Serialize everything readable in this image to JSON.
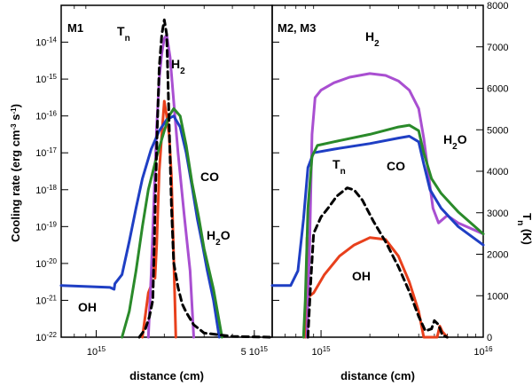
{
  "chart_data": {
    "type": "line",
    "y_axis_left": {
      "label_main": "Cooling rate (erg cm",
      "label_exp1": "-3",
      "label_mid": " s",
      "label_exp2": "-1",
      "label_end": ")",
      "scale": "log",
      "range": [
        1e-22,
        1e-13
      ],
      "ticks": [
        {
          "base": "10",
          "exp": "-14",
          "value": -14
        },
        {
          "base": "10",
          "exp": "-15",
          "value": -15
        },
        {
          "base": "10",
          "exp": "-16",
          "value": -16
        },
        {
          "base": "10",
          "exp": "-17",
          "value": -17
        },
        {
          "base": "10",
          "exp": "-18",
          "value": -18
        },
        {
          "base": "10",
          "exp": "-19",
          "value": -19
        },
        {
          "base": "10",
          "exp": "-20",
          "value": -20
        },
        {
          "base": "10",
          "exp": "-21",
          "value": -21
        },
        {
          "base": "10",
          "exp": "-22",
          "value": -22
        }
      ]
    },
    "y_axis_right": {
      "label": "T",
      "label_sub": "n",
      "label_end": " (K)",
      "range": [
        0,
        8000
      ],
      "ticks": [
        "8000",
        "7000",
        "6000",
        "5000",
        "4000",
        "3000",
        "2000",
        "1000",
        "0"
      ]
    },
    "x_label": "distance (cm)",
    "panels": [
      {
        "name": "M1",
        "x_ticks": [
          {
            "base": "10",
            "exp": "15",
            "value": 1000000000000000.0
          },
          {
            "base": "5 10",
            "exp": "15",
            "value": 5000000000000000.0
          }
        ],
        "x_range": [
          700000000000000.0,
          6000000000000000.0
        ],
        "labels": {
          "T": "T",
          "T_sub": "n",
          "H2": "H",
          "H2_sub": "2",
          "CO": "CO",
          "H2O": "H",
          "H2O_sub": "2",
          "H2O_end": "O",
          "OH": "OH"
        },
        "series": [
          {
            "name": "OH",
            "color": "#e8401c",
            "points": [
              [
                1600000000000000.0,
                -22
              ],
              [
                1700000000000000.0,
                -20.8
              ],
              [
                1750000000000000.0,
                -20.6
              ],
              [
                1780000000000000.0,
                -19.3
              ],
              [
                1820000000000000.0,
                -20.4
              ],
              [
                1850000000000000.0,
                -19.5
              ],
              [
                1900000000000000.0,
                -17.5
              ],
              [
                1950000000000000.0,
                -16.5
              ],
              [
                2000000000000000.0,
                -15.6
              ],
              [
                2050000000000000.0,
                -16.0
              ],
              [
                2100000000000000.0,
                -16.5
              ],
              [
                2150000000000000.0,
                -17.6
              ],
              [
                2200000000000000.0,
                -19.8
              ],
              [
                2250000000000000.0,
                -22
              ]
            ]
          },
          {
            "name": "H2",
            "color": "#a94fd1",
            "points": [
              [
                1700000000000000.0,
                -22
              ],
              [
                1750000000000000.0,
                -20.3
              ],
              [
                1800000000000000.0,
                -18.3
              ],
              [
                1850000000000000.0,
                -16.3
              ],
              [
                1900000000000000.0,
                -15.0
              ],
              [
                1950000000000000.0,
                -14.3
              ],
              [
                2000000000000000.0,
                -13.9
              ],
              [
                2050000000000000.0,
                -13.8
              ],
              [
                2120000000000000.0,
                -14.4
              ],
              [
                2200000000000000.0,
                -15.6
              ],
              [
                2300000000000000.0,
                -17.0
              ],
              [
                2450000000000000.0,
                -18.7
              ],
              [
                2600000000000000.0,
                -20.2
              ],
              [
                2700000000000000.0,
                -22
              ]
            ]
          },
          {
            "name": "CO",
            "color": "#1f3fc4",
            "points": [
              [
                700000000000000.0,
                -20.6
              ],
              [
                1150000000000000.0,
                -20.65
              ],
              [
                1200000000000000.0,
                -20.7
              ],
              [
                1210000000000000.0,
                -20.55
              ],
              [
                1300000000000000.0,
                -20.3
              ],
              [
                1400000000000000.0,
                -19.4
              ],
              [
                1500000000000000.0,
                -18.5
              ],
              [
                1600000000000000.0,
                -17.7
              ],
              [
                1750000000000000.0,
                -16.9
              ],
              [
                1900000000000000.0,
                -16.4
              ],
              [
                2050000000000000.0,
                -16.1
              ],
              [
                2200000000000000.0,
                -16.0
              ],
              [
                2350000000000000.0,
                -16.3
              ],
              [
                2500000000000000.0,
                -17.0
              ],
              [
                2650000000000000.0,
                -17.9
              ],
              [
                2800000000000000.0,
                -18.8
              ],
              [
                2950000000000000.0,
                -19.5
              ],
              [
                3100000000000000.0,
                -20.2
              ],
              [
                3300000000000000.0,
                -21.0
              ],
              [
                3500000000000000.0,
                -22
              ]
            ]
          },
          {
            "name": "H2O",
            "color": "#2a8a2a",
            "points": [
              [
                1300000000000000.0,
                -22
              ],
              [
                1400000000000000.0,
                -21.3
              ],
              [
                1500000000000000.0,
                -20.2
              ],
              [
                1600000000000000.0,
                -19.0
              ],
              [
                1700000000000000.0,
                -18.0
              ],
              [
                1850000000000000.0,
                -17.1
              ],
              [
                2000000000000000.0,
                -16.4
              ],
              [
                2100000000000000.0,
                -16.0
              ],
              [
                2200000000000000.0,
                -15.8
              ],
              [
                2350000000000000.0,
                -16.0
              ],
              [
                2500000000000000.0,
                -16.8
              ],
              [
                2650000000000000.0,
                -17.8
              ],
              [
                2850000000000000.0,
                -18.8
              ],
              [
                3000000000000000.0,
                -19.6
              ],
              [
                3300000000000000.0,
                -20.7
              ],
              [
                3600000000000000.0,
                -22
              ]
            ]
          },
          {
            "name": "Tn",
            "color": "#000000",
            "dashed": true,
            "axis": "right",
            "points": [
              [
                1550000000000000.0,
                0
              ],
              [
                1650000000000000.0,
                200
              ],
              [
                1720000000000000.0,
                500
              ],
              [
                1780000000000000.0,
                900
              ],
              [
                1820000000000000.0,
                3000
              ],
              [
                1860000000000000.0,
                5000
              ],
              [
                1900000000000000.0,
                6500
              ],
              [
                1950000000000000.0,
                7300
              ],
              [
                2000000000000000.0,
                7650
              ],
              [
                2050000000000000.0,
                7300
              ],
              [
                2100000000000000.0,
                5200
              ],
              [
                2150000000000000.0,
                3200
              ],
              [
                2200000000000000.0,
                1800
              ],
              [
                2300000000000000.0,
                1200
              ],
              [
                2400000000000000.0,
                800
              ],
              [
                2500000000000000.0,
                600
              ],
              [
                2700000000000000.0,
                300
              ],
              [
                3000000000000000.0,
                100
              ],
              [
                4000000000000000.0,
                20
              ],
              [
                6000000000000000.0,
                0
              ]
            ]
          }
        ]
      },
      {
        "name": "M2, M3",
        "x_ticks": [
          {
            "base": "10",
            "exp": "15",
            "value": 1000000000000000.0
          },
          {
            "base": "10",
            "exp": "16",
            "value": 1e+16
          }
        ],
        "x_range": [
          500000000000000.0,
          1e+16
        ],
        "labels": {
          "T": "T",
          "T_sub": "n",
          "H2": "H",
          "H2_sub": "2",
          "CO": "CO",
          "H2O": "H",
          "H2O_sub": "2",
          "H2O_end": "O",
          "OH": "OH"
        },
        "series": [
          {
            "name": "OH",
            "color": "#e8401c",
            "points": [
              [
                800000000000000.0,
                -22
              ],
              [
                820000000000000.0,
                -19.3
              ],
              [
                840000000000000.0,
                -20.9
              ],
              [
                900000000000000.0,
                -20.8
              ],
              [
                1050000000000000.0,
                -20.3
              ],
              [
                1300000000000000.0,
                -19.8
              ],
              [
                1600000000000000.0,
                -19.5
              ],
              [
                2000000000000000.0,
                -19.3
              ],
              [
                2500000000000000.0,
                -19.35
              ],
              [
                3000000000000000.0,
                -19.8
              ],
              [
                3500000000000000.0,
                -20.5
              ],
              [
                4000000000000000.0,
                -21.3
              ],
              [
                4300000000000000.0,
                -22
              ],
              [
                5200000000000000.0,
                -22
              ],
              [
                5400000000000000.0,
                -21.7
              ],
              [
                5600000000000000.0,
                -21.85
              ],
              [
                6000000000000000.0,
                -22
              ]
            ]
          },
          {
            "name": "H2",
            "color": "#a94fd1",
            "points": [
              [
                820000000000000.0,
                -22
              ],
              [
                850000000000000.0,
                -19.5
              ],
              [
                880000000000000.0,
                -16.5
              ],
              [
                920000000000000.0,
                -15.5
              ],
              [
                1000000000000000.0,
                -15.3
              ],
              [
                1200000000000000.0,
                -15.1
              ],
              [
                1500000000000000.0,
                -14.95
              ],
              [
                2000000000000000.0,
                -14.85
              ],
              [
                2500000000000000.0,
                -14.9
              ],
              [
                3000000000000000.0,
                -15.05
              ],
              [
                3500000000000000.0,
                -15.3
              ],
              [
                4000000000000000.0,
                -15.8
              ],
              [
                4300000000000000.0,
                -16.6
              ],
              [
                4600000000000000.0,
                -17.6
              ],
              [
                4900000000000000.0,
                -18.5
              ],
              [
                5300000000000000.0,
                -18.9
              ],
              [
                6000000000000000.0,
                -18.7
              ],
              [
                7000000000000000.0,
                -18.9
              ],
              [
                1e+16,
                -19.2
              ]
            ]
          },
          {
            "name": "CO",
            "color": "#1f3fc4",
            "points": [
              [
                500000000000000.0,
                -20.6
              ],
              [
                650000000000000.0,
                -20.6
              ],
              [
                720000000000000.0,
                -20.2
              ],
              [
                780000000000000.0,
                -18.8
              ],
              [
                830000000000000.0,
                -17.4
              ],
              [
                900000000000000.0,
                -17.0
              ],
              [
                1200000000000000.0,
                -16.9
              ],
              [
                2000000000000000.0,
                -16.75
              ],
              [
                3000000000000000.0,
                -16.6
              ],
              [
                3500000000000000.0,
                -16.55
              ],
              [
                4000000000000000.0,
                -16.7
              ],
              [
                4300000000000000.0,
                -17.3
              ],
              [
                4700000000000000.0,
                -18.0
              ],
              [
                5500000000000000.0,
                -18.5
              ],
              [
                7000000000000000.0,
                -19.0
              ],
              [
                1e+16,
                -19.5
              ]
            ]
          },
          {
            "name": "H2O",
            "color": "#2a8a2a",
            "points": [
              [
                780000000000000.0,
                -22
              ],
              [
                800000000000000.0,
                -21.0
              ],
              [
                830000000000000.0,
                -18.5
              ],
              [
                880000000000000.0,
                -17.1
              ],
              [
                950000000000000.0,
                -16.8
              ],
              [
                1200000000000000.0,
                -16.7
              ],
              [
                2000000000000000.0,
                -16.5
              ],
              [
                3000000000000000.0,
                -16.3
              ],
              [
                3500000000000000.0,
                -16.25
              ],
              [
                4000000000000000.0,
                -16.4
              ],
              [
                4300000000000000.0,
                -17.0
              ],
              [
                4800000000000000.0,
                -17.7
              ],
              [
                5500000000000000.0,
                -18.1
              ],
              [
                7000000000000000.0,
                -18.6
              ],
              [
                1e+16,
                -19.2
              ]
            ]
          },
          {
            "name": "Tn",
            "color": "#000000",
            "dashed": true,
            "axis": "right",
            "points": [
              [
                830000000000000.0,
                0
              ],
              [
                860000000000000.0,
                1200
              ],
              [
                900000000000000.0,
                2500
              ],
              [
                1000000000000000.0,
                2900
              ],
              [
                1100000000000000.0,
                3100
              ],
              [
                1250000000000000.0,
                3400
              ],
              [
                1450000000000000.0,
                3600
              ],
              [
                1600000000000000.0,
                3550
              ],
              [
                1800000000000000.0,
                3300
              ],
              [
                2100000000000000.0,
                2800
              ],
              [
                2500000000000000.0,
                2300
              ],
              [
                3000000000000000.0,
                1700
              ],
              [
                3500000000000000.0,
                1100
              ],
              [
                4000000000000000.0,
                500
              ],
              [
                4400000000000000.0,
                150
              ],
              [
                4800000000000000.0,
                200
              ],
              [
                5000000000000000.0,
                400
              ],
              [
                5300000000000000.0,
                300
              ],
              [
                5600000000000000.0,
                50
              ],
              [
                6000000000000000.0,
                0
              ]
            ]
          }
        ]
      }
    ]
  }
}
